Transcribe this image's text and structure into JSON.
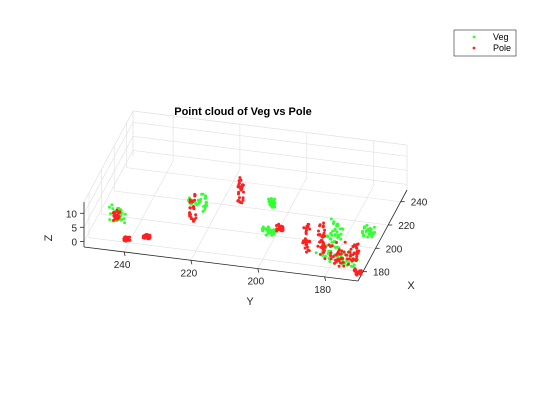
{
  "chart_data": {
    "type": "scatter3d",
    "title": "Point cloud of Veg vs Pole",
    "xlabel": "X",
    "ylabel": "Y",
    "zlabel": "Z",
    "x_ticks": [
      180,
      200,
      220,
      240
    ],
    "y_ticks": [
      180,
      200,
      220,
      240
    ],
    "z_ticks": [
      0,
      5,
      10
    ],
    "xlim": [
      172,
      250
    ],
    "ylim": [
      170,
      252
    ],
    "zlim": [
      -2,
      14
    ],
    "grid": true,
    "legend_position": "top-right",
    "series": [
      {
        "name": "Veg",
        "color": "#33ff33",
        "clusters": [
          {
            "x": [
              184,
              188
            ],
            "y": [
              242,
              247
            ],
            "z": [
              2,
              8
            ]
          },
          {
            "x": [
              196,
              201
            ],
            "y": [
              220,
              226
            ],
            "z": [
              5,
              10
            ]
          },
          {
            "x": [
              204,
              206
            ],
            "y": [
              201,
              203
            ],
            "z": [
              6,
              9
            ]
          },
          {
            "x": [
              188,
              192
            ],
            "y": [
              198,
              202
            ],
            "z": [
              3,
              5
            ]
          },
          {
            "x": [
              190,
              200
            ],
            "y": [
              179,
              184
            ],
            "z": [
              2,
              8
            ]
          },
          {
            "x": [
              179,
              190
            ],
            "y": [
              176,
              184
            ],
            "z": [
              0,
              5
            ]
          },
          {
            "x": [
              176,
              182
            ],
            "y": [
              172,
              178
            ],
            "z": [
              0,
              4
            ]
          },
          {
            "x": [
              196,
              200
            ],
            "y": [
              170,
              174
            ],
            "z": [
              3,
              6
            ]
          }
        ]
      },
      {
        "name": "Pole",
        "color": "#ff2020",
        "clusters": [
          {
            "x": [
              185,
              187
            ],
            "y": [
              244,
              246
            ],
            "z": [
              3,
              6
            ]
          },
          {
            "x": [
              176,
              178
            ],
            "y": [
              239,
              241
            ],
            "z": [
              0,
              1
            ]
          },
          {
            "x": [
              180,
              182
            ],
            "y": [
              234,
              236
            ],
            "z": [
              0,
              1
            ]
          },
          {
            "x": [
              195,
              197
            ],
            "y": [
              223,
              225
            ],
            "z": [
              1,
              11
            ]
          },
          {
            "x": [
              208,
              210
            ],
            "y": [
              211,
              213
            ],
            "z": [
              4,
              13
            ]
          },
          {
            "x": [
              190,
              192
            ],
            "y": [
              196,
              198
            ],
            "z": [
              4,
              6
            ]
          },
          {
            "x": [
              185,
              187
            ],
            "y": [
              187,
              189
            ],
            "z": [
              0,
              10
            ]
          },
          {
            "x": [
              187,
              189
            ],
            "y": [
              183,
              185
            ],
            "z": [
              0,
              10
            ]
          },
          {
            "x": [
              180,
              190
            ],
            "y": [
              177,
              184
            ],
            "z": [
              0,
              4
            ]
          },
          {
            "x": [
              176,
              183
            ],
            "y": [
              173,
              179
            ],
            "z": [
              0,
              4
            ]
          },
          {
            "x": [
              180,
              186
            ],
            "y": [
              172,
              174
            ],
            "z": [
              0,
              6
            ]
          },
          {
            "x": [
              176,
              178
            ],
            "y": [
              170,
              172
            ],
            "z": [
              -2,
              0
            ]
          }
        ]
      }
    ]
  },
  "colors": {
    "axis": "#262626",
    "grid": "#e0e0e0",
    "veg": "#33ff33",
    "pole": "#ff2020"
  }
}
